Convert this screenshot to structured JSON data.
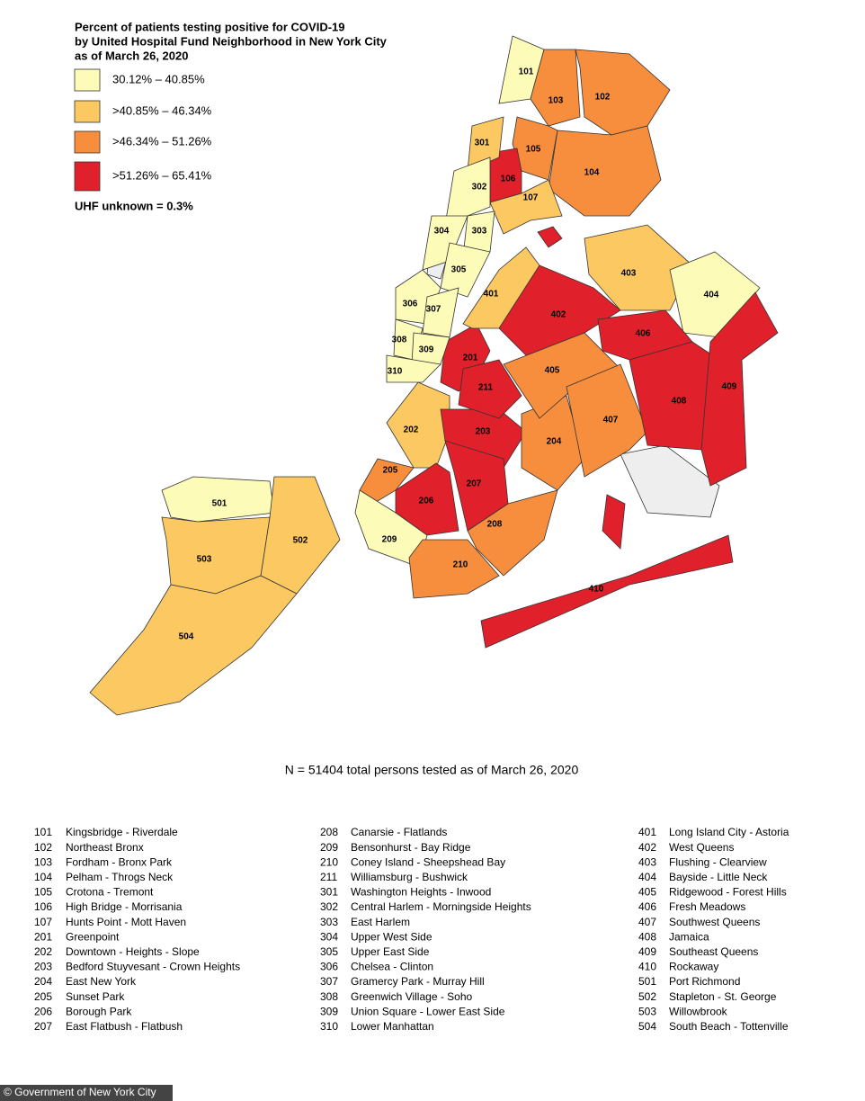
{
  "title": [
    "Percent of patients testing positive for COVID-19",
    "by United Hospital Fund Neighborhood in New York City",
    "as of March 26, 2020"
  ],
  "legend": [
    {
      "label": "30.12% – 40.85%",
      "color": "#fdfbb8"
    },
    {
      "label": ">40.85% – 46.34%",
      "color": "#fbc862"
    },
    {
      "label": ">46.34% – 51.26%",
      "color": "#f78e3d"
    },
    {
      "label": ">51.26% – 65.41%",
      "color": "#e0202a"
    }
  ],
  "note": "UHF unknown = 0.3%",
  "regions": [
    {
      "code": "101",
      "name": "Kingsbridge - Riverdale",
      "color": "#fdfbb8"
    },
    {
      "code": "102",
      "name": "Northeast Bronx",
      "color": "#f78e3d"
    },
    {
      "code": "103",
      "name": "Fordham - Bronx Park",
      "color": "#f78e3d"
    },
    {
      "code": "104",
      "name": "Pelham - Throgs Neck",
      "color": "#f78e3d"
    },
    {
      "code": "105",
      "name": "Crotona - Tremont",
      "color": "#f78e3d"
    },
    {
      "code": "106",
      "name": "High Bridge - Morrisania",
      "color": "#e0202a"
    },
    {
      "code": "107",
      "name": "Hunts Point - Mott Haven",
      "color": "#fbc862"
    },
    {
      "code": "201",
      "name": "Greenpoint",
      "color": "#e0202a"
    },
    {
      "code": "202",
      "name": "Downtown  - Heights - Slope",
      "color": "#fbc862"
    },
    {
      "code": "203",
      "name": "Bedford Stuyvesant - Crown Heights",
      "color": "#e0202a"
    },
    {
      "code": "204",
      "name": "East New York",
      "color": "#f78e3d"
    },
    {
      "code": "205",
      "name": "Sunset Park",
      "color": "#f78e3d"
    },
    {
      "code": "206",
      "name": "Borough Park",
      "color": "#e0202a"
    },
    {
      "code": "207",
      "name": "East Flatbush - Flatbush",
      "color": "#e0202a"
    },
    {
      "code": "208",
      "name": "Canarsie - Flatlands",
      "color": "#f78e3d"
    },
    {
      "code": "209",
      "name": "Bensonhurst - Bay Ridge",
      "color": "#fdfbb8"
    },
    {
      "code": "210",
      "name": "Coney Island - Sheepshead Bay",
      "color": "#f78e3d"
    },
    {
      "code": "211",
      "name": "Williamsburg - Bushwick",
      "color": "#e0202a"
    },
    {
      "code": "301",
      "name": "Washington Heights - Inwood",
      "color": "#fbc862"
    },
    {
      "code": "302",
      "name": "Central Harlem - Morningside Heights",
      "color": "#fdfbb8"
    },
    {
      "code": "303",
      "name": "East Harlem",
      "color": "#fdfbb8"
    },
    {
      "code": "304",
      "name": "Upper West Side",
      "color": "#fdfbb8"
    },
    {
      "code": "305",
      "name": "Upper East Side",
      "color": "#fdfbb8"
    },
    {
      "code": "306",
      "name": "Chelsea - Clinton",
      "color": "#fdfbb8"
    },
    {
      "code": "307",
      "name": "Gramercy Park -  Murray Hill",
      "color": "#fdfbb8"
    },
    {
      "code": "308",
      "name": "Greenwich Village - Soho",
      "color": "#fdfbb8"
    },
    {
      "code": "309",
      "name": "Union Square - Lower East Side",
      "color": "#fdfbb8"
    },
    {
      "code": "310",
      "name": "Lower Manhattan",
      "color": "#fdfbb8"
    },
    {
      "code": "401",
      "name": "Long Island City - Astoria",
      "color": "#fbc862"
    },
    {
      "code": "402",
      "name": "West Queens",
      "color": "#e0202a"
    },
    {
      "code": "403",
      "name": "Flushing - Clearview",
      "color": "#fbc862"
    },
    {
      "code": "404",
      "name": "Bayside - Little Neck",
      "color": "#fdfbb8"
    },
    {
      "code": "405",
      "name": "Ridgewood - Forest Hills",
      "color": "#f78e3d"
    },
    {
      "code": "406",
      "name": "Fresh Meadows",
      "color": "#e0202a"
    },
    {
      "code": "407",
      "name": "Southwest Queens",
      "color": "#f78e3d"
    },
    {
      "code": "408",
      "name": "Jamaica",
      "color": "#e0202a"
    },
    {
      "code": "409",
      "name": "Southeast Queens",
      "color": "#e0202a"
    },
    {
      "code": "410",
      "name": "Rockaway",
      "color": "#e0202a"
    },
    {
      "code": "501",
      "name": "Port  Richmond",
      "color": "#fdfbb8"
    },
    {
      "code": "502",
      "name": "Stapleton - St. George",
      "color": "#fbc862"
    },
    {
      "code": "503",
      "name": "Willowbrook",
      "color": "#fbc862"
    },
    {
      "code": "504",
      "name": "South Beach - Tottenville",
      "color": "#fbc862"
    }
  ],
  "footnote": "N = 51404 total persons tested as of March 26, 2020",
  "credit": "© Government of New York City"
}
